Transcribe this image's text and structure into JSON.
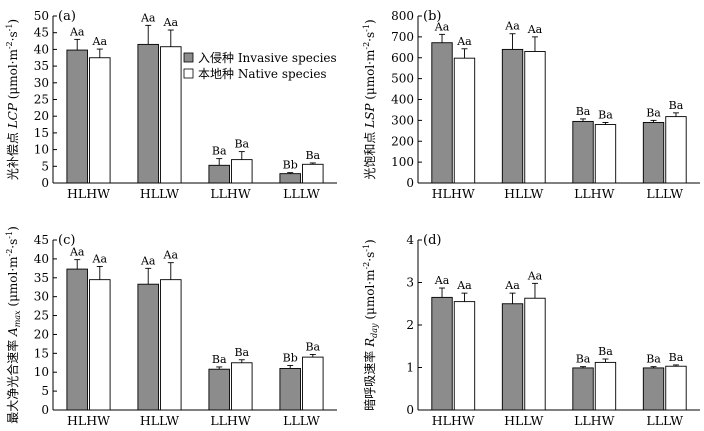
{
  "legend": {
    "invasive": "入侵种 Invasive species",
    "native": "本地种 Native species"
  },
  "colors": {
    "invasive": "#8c8c8c",
    "native": "#ffffff",
    "axis": "#000000"
  },
  "chart_data": [
    {
      "type": "bar",
      "panel": "(a)",
      "ylabel_parts": [
        "光补偿点",
        "LCP",
        "(μmol·m",
        "-2",
        "·s",
        "-1",
        ")"
      ],
      "ylim": [
        0,
        50
      ],
      "yticks": [
        0,
        5,
        10,
        15,
        20,
        25,
        30,
        35,
        40,
        45,
        50
      ],
      "categories": [
        "HLHW",
        "HLLW",
        "LLHW",
        "LLLW"
      ],
      "series": [
        {
          "name": "入侵种 Invasive species",
          "values": [
            39.8,
            41.5,
            5.3,
            2.8
          ],
          "errors": [
            3.2,
            5.7,
            2.0,
            0.3
          ],
          "labels": [
            "Aa",
            "Aa",
            "Ba",
            "Bb"
          ]
        },
        {
          "name": "本地种 Native species",
          "values": [
            37.5,
            40.8,
            7.0,
            5.6
          ],
          "errors": [
            2.6,
            5.0,
            2.4,
            0.4
          ],
          "labels": [
            "Aa",
            "Aa",
            "Ba",
            "Ba"
          ]
        }
      ],
      "legend_position": "top-right"
    },
    {
      "type": "bar",
      "panel": "(b)",
      "ylabel_parts": [
        "光饱和点",
        "LSP",
        "(μmol·m",
        "-2",
        "·s",
        "-1",
        ")"
      ],
      "ylim": [
        0,
        800
      ],
      "yticks": [
        0,
        100,
        200,
        300,
        400,
        500,
        600,
        700,
        800
      ],
      "categories": [
        "HLHW",
        "HLLW",
        "LLHW",
        "LLLW"
      ],
      "series": [
        {
          "name": "入侵种 Invasive species",
          "values": [
            672,
            640,
            295,
            290
          ],
          "errors": [
            40,
            75,
            12,
            10
          ],
          "labels": [
            "Aa",
            "Aa",
            "Ba",
            "Ba"
          ]
        },
        {
          "name": "本地种 Native species",
          "values": [
            598,
            630,
            280,
            318
          ],
          "errors": [
            45,
            70,
            10,
            18
          ],
          "labels": [
            "Aa",
            "Aa",
            "Ba",
            "Ba"
          ]
        }
      ]
    },
    {
      "type": "bar",
      "panel": "(c)",
      "ylabel_parts": [
        "最大净光合速率",
        "A",
        "max",
        "(μmol·m",
        "-2",
        "·s",
        "-1",
        ")"
      ],
      "ylim": [
        0,
        45
      ],
      "yticks": [
        0,
        5,
        10,
        15,
        20,
        25,
        30,
        35,
        40,
        45
      ],
      "categories": [
        "HLHW",
        "HLLW",
        "LLHW",
        "LLLW"
      ],
      "series": [
        {
          "name": "入侵种 Invasive species",
          "values": [
            37.3,
            33.3,
            10.8,
            11.0
          ],
          "errors": [
            2.5,
            4.2,
            0.6,
            0.8
          ],
          "labels": [
            "Aa",
            "Aa",
            "Ba",
            "Bb"
          ]
        },
        {
          "name": "本地种 Native species",
          "values": [
            34.5,
            34.5,
            12.5,
            14.0
          ],
          "errors": [
            3.5,
            4.5,
            0.8,
            0.7
          ],
          "labels": [
            "Aa",
            "Aa",
            "Ba",
            "Ba"
          ]
        }
      ]
    },
    {
      "type": "bar",
      "panel": "(d)",
      "ylabel_parts": [
        "暗呼吸速率",
        "R",
        "day",
        "(μmol·m",
        "-2",
        "·s",
        "-1",
        ")"
      ],
      "ylim": [
        0,
        4
      ],
      "yticks": [
        0,
        1,
        2,
        3,
        4
      ],
      "categories": [
        "HLHW",
        "HLLW",
        "LLHW",
        "LLLW"
      ],
      "series": [
        {
          "name": "入侵种 Invasive species",
          "values": [
            2.65,
            2.5,
            0.99,
            0.99
          ],
          "errors": [
            0.22,
            0.25,
            0.03,
            0.03
          ],
          "labels": [
            "Aa",
            "Aa",
            "Ba",
            "Ba"
          ]
        },
        {
          "name": "本地种 Native species",
          "values": [
            2.55,
            2.63,
            1.12,
            1.03
          ],
          "errors": [
            0.2,
            0.35,
            0.08,
            0.03
          ],
          "labels": [
            "Aa",
            "Aa",
            "Ba",
            "Ba"
          ]
        }
      ]
    }
  ]
}
